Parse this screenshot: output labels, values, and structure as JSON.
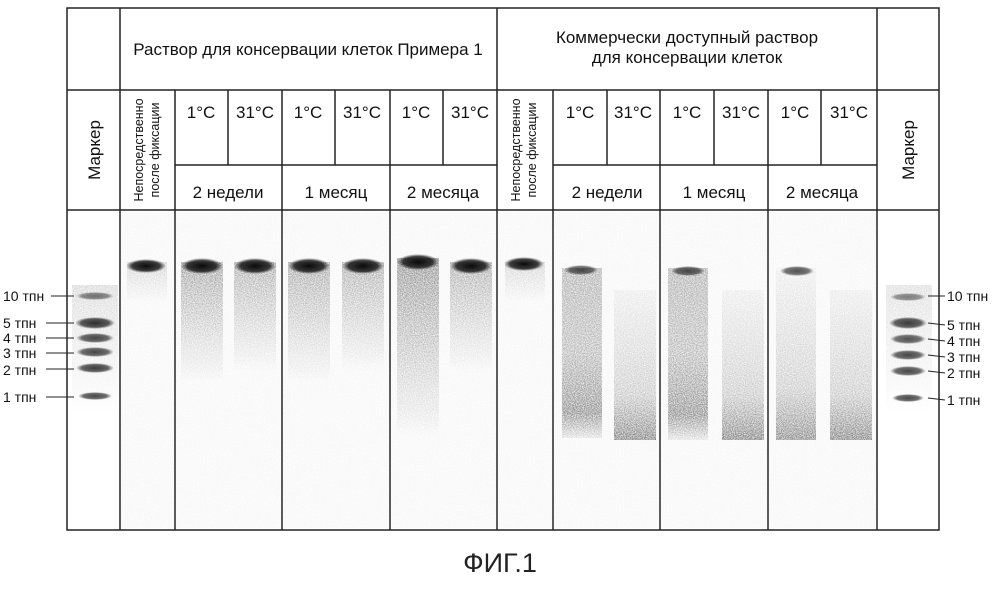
{
  "groups": {
    "left": "Раствор для консервации клеток Примера 1",
    "right": [
      "Коммерчески доступный раствор",
      "для консервации клеток"
    ]
  },
  "marker_label": "Маркер",
  "immediate_label": [
    "Непосредственно",
    "после фиксации"
  ],
  "temps": [
    "1°C",
    "31°C",
    "1°C",
    "31°C",
    "1°C",
    "31°C"
  ],
  "periods": [
    "2 недели",
    "1 месяц",
    "2 месяца"
  ],
  "size_labels": [
    "10 тпн",
    "5 тпн",
    "4 тпн",
    "3 тпн",
    "2 тпн",
    "1 тпн"
  ],
  "caption": "ФИГ.1"
}
